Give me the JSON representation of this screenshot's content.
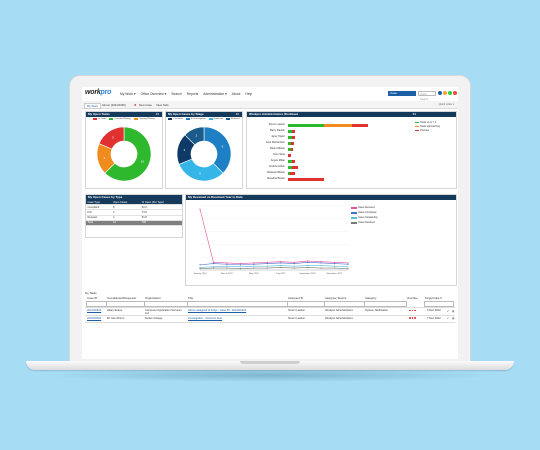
{
  "app": {
    "logo_main": "work",
    "logo_accent": "pro"
  },
  "nav": {
    "items": [
      "My Work ▾",
      "Office Overview ▾",
      "Search",
      "Reports",
      "Administration ▾",
      "About",
      "Help"
    ]
  },
  "header": {
    "search_button": "Case",
    "search_placeholder": "Quick Search"
  },
  "avatars": [
    "#1d5fa6",
    "#f5a623",
    "#2ecc40",
    "#e74c3c",
    "#8e44ad"
  ],
  "tabs": [
    "My Work",
    "Simon (2021/2025)",
    "New Case",
    "View Tabs"
  ],
  "quick_link": "Quick Links ▾",
  "panels": {
    "my_open_tasks": {
      "title": "My Open Tasks",
      "count": "16",
      "legend": [
        "In Order",
        "Overdue/Waiting",
        "Ongoing/Waiting"
      ]
    },
    "my_open_cases_stage": {
      "title": "My Open Cases by Stage",
      "count": "16",
      "legend": [
        "Customer",
        "In Investigation",
        "Endorsed",
        "Referred"
      ]
    },
    "workload": {
      "title": "Workpro Administrators Workload",
      "count": "69",
      "rows": [
        {
          "name": "Simon Lawton",
          "segs": [
            {
              "w": 36,
              "c": "#2eb82e"
            },
            {
              "w": 28,
              "c": "#f08c1e"
            },
            {
              "w": 16,
              "c": "#e03131"
            }
          ]
        },
        {
          "name": "Barry Rankin",
          "segs": [
            {
              "w": 4,
              "c": "#2eb82e"
            },
            {
              "w": 3,
              "c": "#e03131"
            }
          ]
        },
        {
          "name": "Jamy Taylor",
          "segs": [
            {
              "w": 4,
              "c": "#2eb82e"
            },
            {
              "w": 3,
              "c": "#e03131"
            }
          ]
        },
        {
          "name": "Jess Richardson",
          "segs": [
            {
              "w": 3,
              "c": "#2eb82e"
            },
            {
              "w": 3,
              "c": "#e03131"
            }
          ]
        },
        {
          "name": "Danni Wilson",
          "segs": [
            {
              "w": 3,
              "c": "#2eb82e"
            },
            {
              "w": 2,
              "c": "#e03131"
            }
          ]
        },
        {
          "name": "Dino Silva",
          "segs": [
            {
              "w": 3,
              "c": "#e03131"
            }
          ]
        },
        {
          "name": "Angus Milan",
          "segs": [
            {
              "w": 4,
              "c": "#2eb82e"
            },
            {
              "w": 3,
              "c": "#e03131"
            }
          ]
        },
        {
          "name": "Andrew Hilton",
          "segs": [
            {
              "w": 4,
              "c": "#2eb82e"
            },
            {
              "w": 6,
              "c": "#e03131"
            }
          ]
        },
        {
          "name": "Mairead Wilson",
          "segs": [
            {
              "w": 2,
              "c": "#2eb82e"
            },
            {
              "w": 5,
              "c": "#e03131"
            }
          ]
        },
        {
          "name": "Mcpahel Brown",
          "segs": [
            {
              "w": 36,
              "c": "#e03131"
            }
          ]
        }
      ],
      "legend": [
        {
          "label": "Tasks up to 7 d",
          "c": "#2eb82e"
        },
        {
          "label": "Tasks approaching",
          "c": "#f08c1e"
        },
        {
          "label": "Overdue",
          "c": "#e03131"
        }
      ]
    },
    "cases_by_type": {
      "title": "My Open Cases by Type",
      "headers": [
        "Case Type",
        "Open Cases",
        "% Open (Per Type)"
      ],
      "rows": [
        [
          "Complaint",
          "8",
          "52.2"
        ],
        [
          "FOI",
          "2",
          "73.5"
        ],
        [
          "Request",
          "4",
          "51.8"
        ]
      ],
      "total": [
        "Total",
        "14",
        "100"
      ]
    },
    "received_resolved": {
      "title": "My Received vs Resolved Year to Date",
      "legend": [
        {
          "label": "Cases Received",
          "c": "#e8509a"
        },
        {
          "label": "Cases Completed",
          "c": "#4a6fd0"
        },
        {
          "label": "Cases Outstanding",
          "c": "#5bbcd6"
        },
        {
          "label": "Cases Resolved",
          "c": "#7a7a7a"
        }
      ]
    }
  },
  "chart_data": [
    {
      "type": "pie",
      "title": "My Open Tasks",
      "labels": [
        "In Order",
        "Overdue/Waiting",
        "Ongoing/Waiting"
      ],
      "values": [
        10,
        3,
        3
      ]
    },
    {
      "type": "pie",
      "title": "My Open Cases by Stage",
      "labels": [
        "Customer",
        "In Investigation",
        "Endorsed",
        "Referred"
      ],
      "values": [
        6,
        5,
        3,
        2
      ]
    },
    {
      "type": "line",
      "title": "My Received vs Resolved Year to Date",
      "x": [
        "January 2022",
        "February 2022",
        "March 2022",
        "April 2022",
        "May 2022",
        "June 2022",
        "July 2022",
        "August 2022",
        "September 2022",
        "October 2022",
        "November 2022",
        "December 2022"
      ],
      "ylim": [
        0,
        100
      ],
      "series": [
        {
          "name": "Cases Received",
          "color": "#e8509a",
          "values": [
            95,
            12,
            11,
            10,
            11,
            12,
            13,
            12,
            14,
            13,
            12,
            11
          ]
        },
        {
          "name": "Cases Completed",
          "color": "#4a6fd0",
          "values": [
            8,
            10,
            9,
            8,
            9,
            10,
            11,
            10,
            12,
            11,
            10,
            9
          ]
        },
        {
          "name": "Cases Outstanding",
          "color": "#5bbcd6",
          "values": [
            4,
            5,
            6,
            5,
            6,
            6,
            7,
            6,
            7,
            7,
            6,
            5
          ]
        },
        {
          "name": "Cases Resolved",
          "color": "#7a7a7a",
          "values": [
            2,
            3,
            3,
            2,
            3,
            3,
            4,
            3,
            4,
            3,
            3,
            2
          ]
        }
      ]
    }
  ],
  "tasks": {
    "title": "My Tasks",
    "columns": [
      "Case ID",
      "Complainant/Requester",
      "Organisation",
      "Title",
      "Assigned To",
      "Assignee Team/s",
      "Category",
      "Overdue",
      "Target Date ▾"
    ],
    "rows": [
      {
        "case_id": "2021/00224",
        "complainant": "Hilary Evans",
        "organisation": "Computer Application Services Ltd",
        "title": "Admin assigned to Jobpt - Case ID - 2021/00224",
        "assigned_to": "Simon Lawton",
        "team": "Workpro Administrators",
        "category": "System Notification",
        "overdue": [
          "#e03131",
          "#e03131",
          "#e03131"
        ],
        "target": "6 Dec 2022"
      },
      {
        "case_id": "2022/00004",
        "complainant": "Mr Glen Burns",
        "organisation": "Fettes College",
        "title": "Investigation - Outcome Due",
        "assigned_to": "Simon Lawton",
        "team": "Workpro Administrators",
        "category": "",
        "overdue": [
          "#e03131",
          "#e03131",
          "#e03131"
        ],
        "target": "7 Dec 2022"
      }
    ]
  }
}
